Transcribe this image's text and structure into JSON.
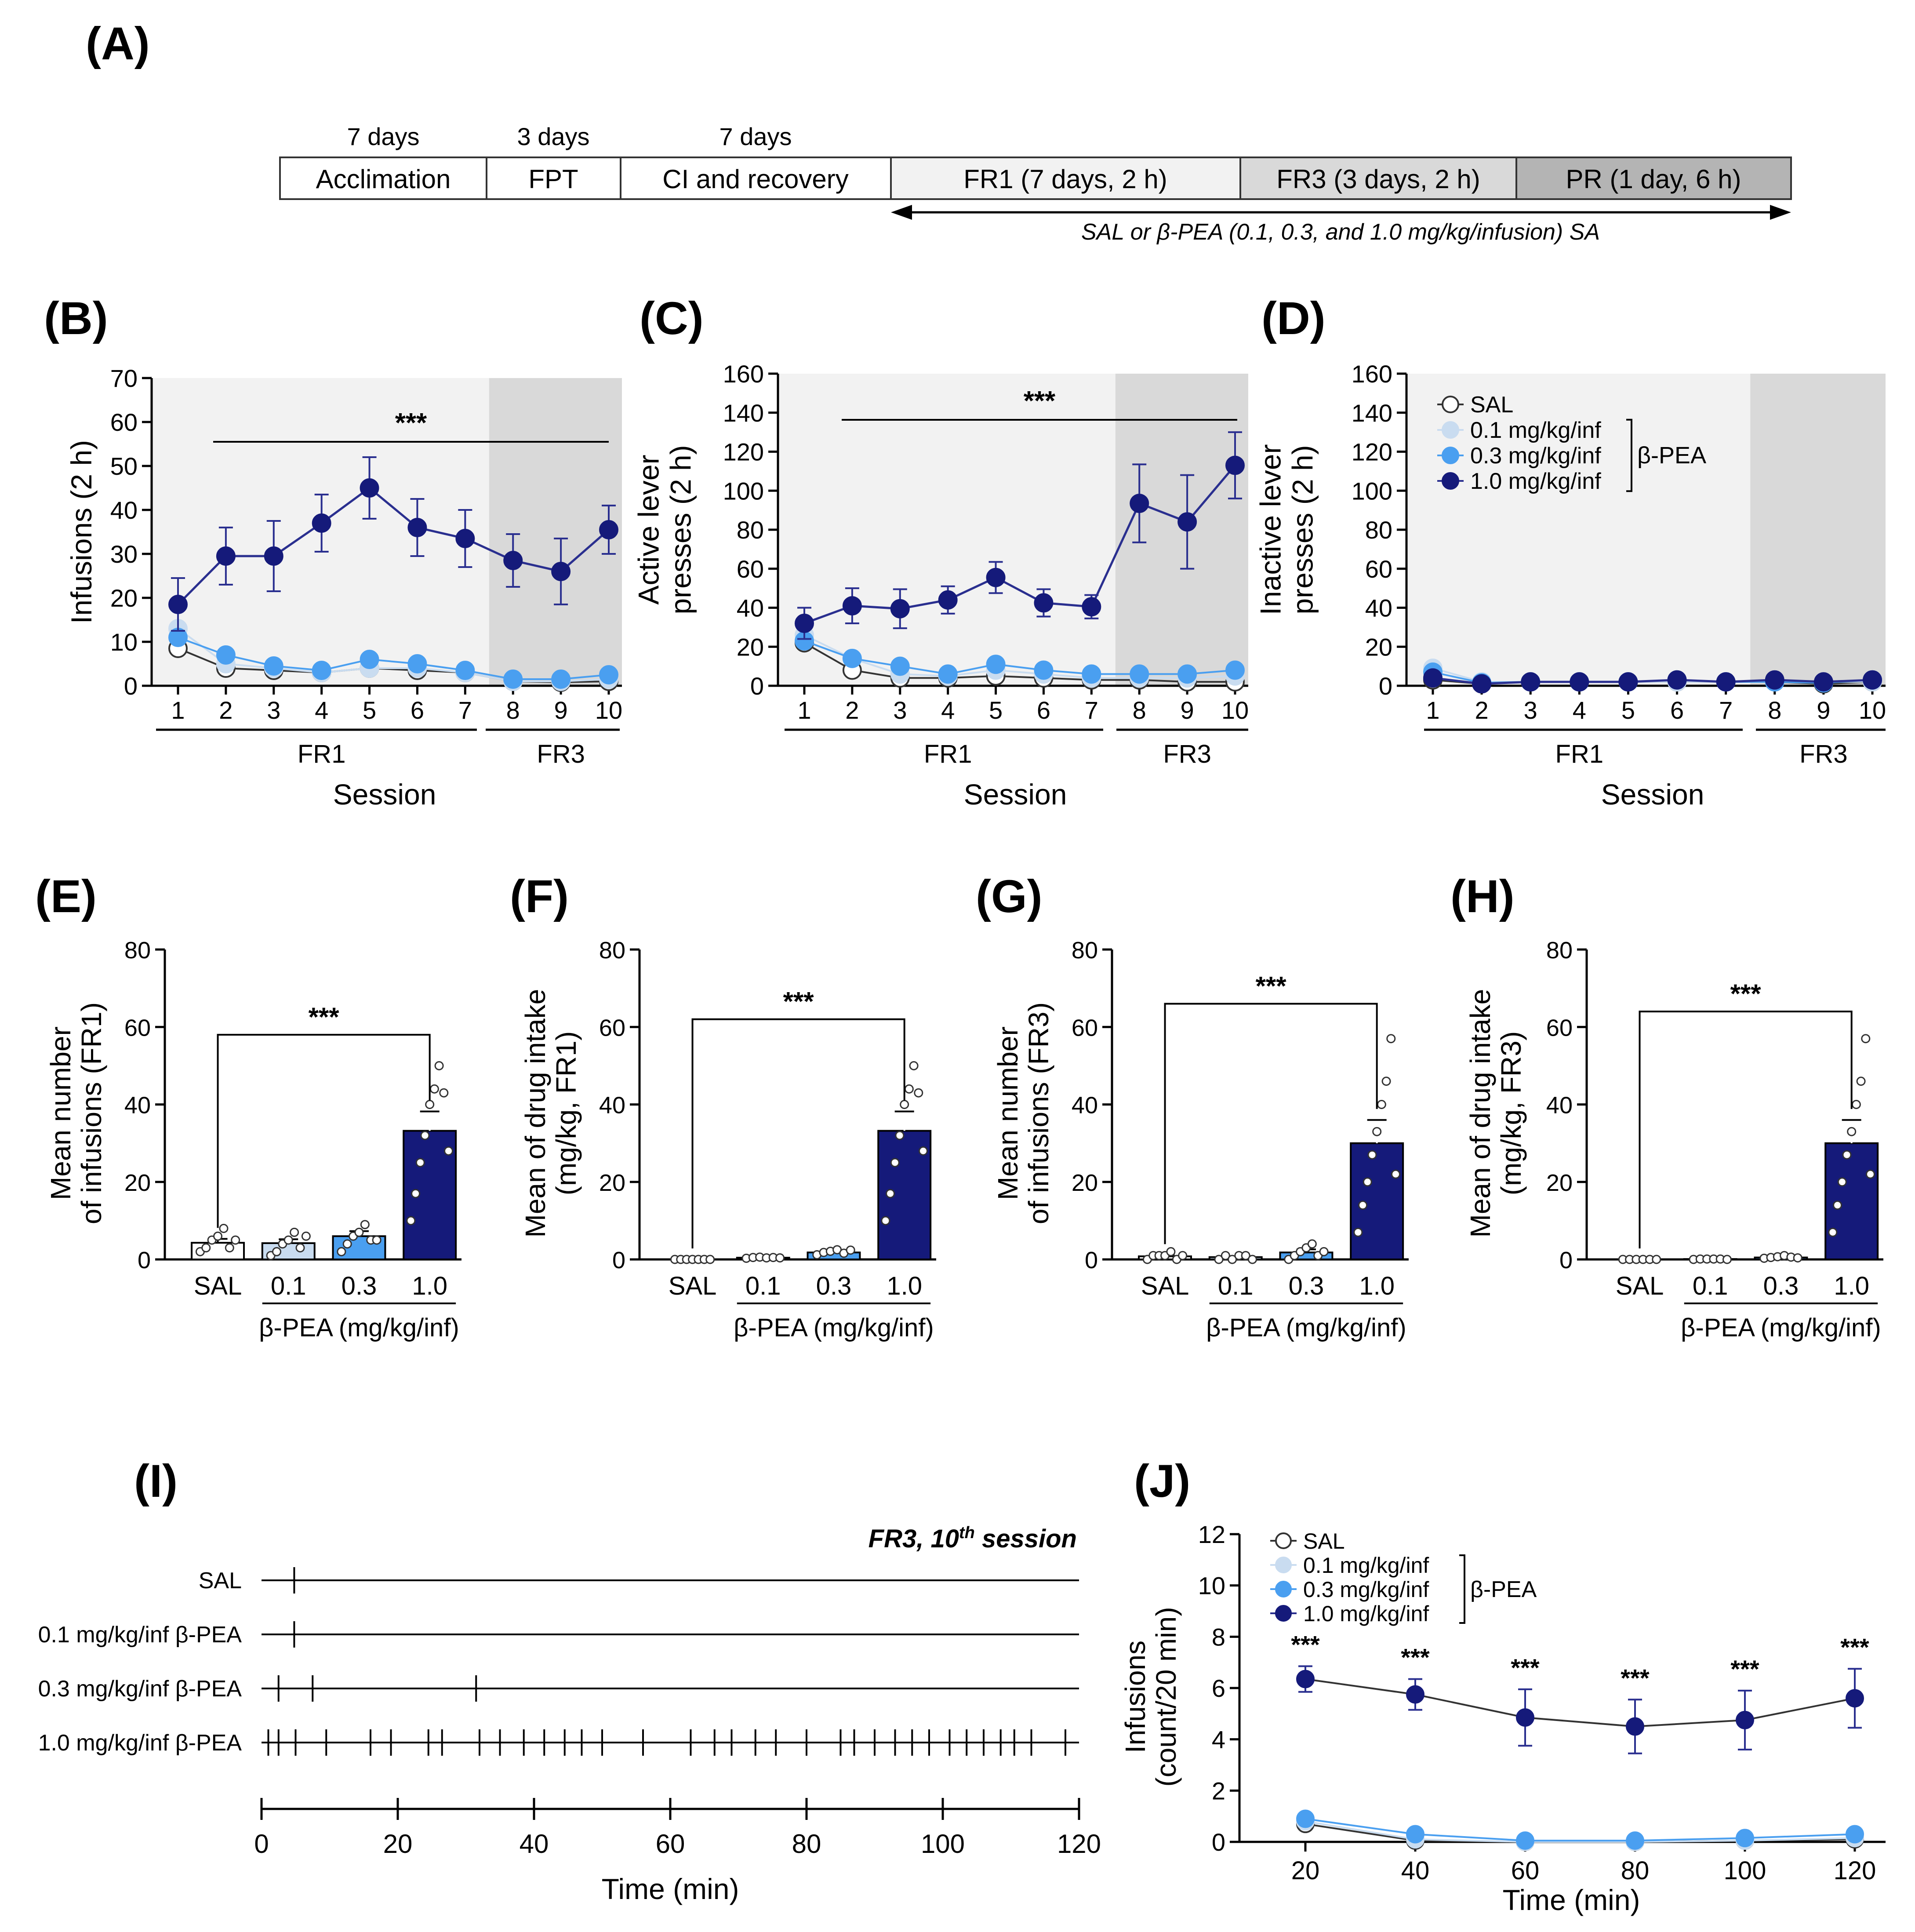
{
  "panel_labels": {
    "A": "(A)",
    "B": "(B)",
    "C": "(C)",
    "D": "(D)",
    "E": "(E)",
    "F": "(F)",
    "G": "(G)",
    "H": "(H)",
    "I": "(I)",
    "J": "(J)"
  },
  "timeline": {
    "stages": [
      {
        "label": "Acclimation",
        "duration": "7 days"
      },
      {
        "label": "FPT",
        "duration": "3 days"
      },
      {
        "label": "CI and recovery",
        "duration": "7 days"
      },
      {
        "label": "FR1 (7 days, 2 h)",
        "duration": ""
      },
      {
        "label": "FR3 (3 days, 2 h)",
        "duration": ""
      },
      {
        "label": "PR (1 day, 6 h)",
        "duration": ""
      }
    ],
    "arrow_label": "SAL or β-PEA (0.1, 0.3, and 1.0 mg/kg/infusion) SA"
  },
  "colors": {
    "sal": "#ffffff",
    "d01": "#c9dcf0",
    "d03": "#4a9ff0",
    "d10": "#151a7a",
    "bg_fr1": "#f2f2f2",
    "bg_fr3": "#d9d9d9"
  },
  "legend": {
    "sal": "SAL",
    "d01": "0.1 mg/kg/inf",
    "d03": "0.3 mg/kg/inf",
    "d10": "1.0 mg/kg/inf",
    "group": "β-PEA"
  },
  "chart_data": [
    {
      "id": "B",
      "type": "line",
      "ylabel": "Infusions (2 h)",
      "xlabel": "Session",
      "ylim": [
        0,
        70
      ],
      "yticks": [
        0,
        10,
        20,
        30,
        40,
        50,
        60,
        70
      ],
      "x": [
        1,
        2,
        3,
        4,
        5,
        6,
        7,
        8,
        9,
        10
      ],
      "phase_labels": [
        "FR1",
        "FR3"
      ],
      "significance": "***",
      "series": [
        {
          "name": "SAL",
          "values": [
            8.5,
            4.0,
            3.5,
            3.0,
            4.0,
            3.5,
            3.0,
            1.0,
            0.8,
            1.0
          ]
        },
        {
          "name": "0.1 mg/kg/inf",
          "values": [
            13,
            5,
            4,
            3,
            4,
            4,
            3,
            1,
            1,
            1.5
          ]
        },
        {
          "name": "0.3 mg/kg/inf",
          "values": [
            11,
            7,
            4.5,
            3.5,
            6,
            5,
            3.5,
            1.5,
            1.5,
            2.5
          ]
        },
        {
          "name": "1.0 mg/kg/inf",
          "values": [
            18.5,
            29.5,
            29.5,
            37,
            45,
            36,
            33.5,
            28.5,
            26,
            35.5
          ],
          "errors": [
            6,
            6.5,
            8,
            6.5,
            7,
            6.5,
            6.5,
            6,
            7.5,
            5.5
          ]
        }
      ]
    },
    {
      "id": "C",
      "type": "line",
      "ylabel": [
        "Active lever",
        "presses (2 h)"
      ],
      "xlabel": "Session",
      "ylim": [
        0,
        160
      ],
      "yticks": [
        0,
        20,
        40,
        60,
        80,
        100,
        120,
        140,
        160
      ],
      "x": [
        1,
        2,
        3,
        4,
        5,
        6,
        7,
        8,
        9,
        10
      ],
      "phase_labels": [
        "FR1",
        "FR3"
      ],
      "significance": "***",
      "series": [
        {
          "name": "SAL",
          "values": [
            22,
            8,
            4,
            4,
            5,
            4,
            3,
            3,
            2,
            2
          ]
        },
        {
          "name": "0.1 mg/kg/inf",
          "values": [
            26,
            14,
            6,
            5,
            8,
            6,
            4,
            4,
            4,
            5
          ]
        },
        {
          "name": "0.3 mg/kg/inf",
          "values": [
            23,
            14,
            10,
            6,
            11,
            8,
            6,
            6,
            6,
            8
          ]
        },
        {
          "name": "1.0 mg/kg/inf",
          "values": [
            32,
            41,
            39.5,
            44,
            55.5,
            42.5,
            40.5,
            93.5,
            84,
            113
          ],
          "errors": [
            8,
            9,
            10,
            7,
            8,
            7,
            6,
            20,
            24,
            17
          ]
        }
      ]
    },
    {
      "id": "D",
      "type": "line",
      "ylabel": [
        "Inactive lever",
        "presses (2 h)"
      ],
      "xlabel": "Session",
      "ylim": [
        0,
        160
      ],
      "yticks": [
        0,
        20,
        40,
        60,
        80,
        100,
        120,
        140,
        160
      ],
      "x": [
        1,
        2,
        3,
        4,
        5,
        6,
        7,
        8,
        9,
        10
      ],
      "phase_labels": [
        "FR1",
        "FR3"
      ],
      "series": [
        {
          "name": "SAL",
          "values": [
            3,
            1,
            2,
            2,
            2,
            2,
            2,
            2,
            1,
            2
          ]
        },
        {
          "name": "0.1 mg/kg/inf",
          "values": [
            9,
            2,
            2,
            2,
            2,
            2,
            2,
            2,
            2,
            2
          ]
        },
        {
          "name": "0.3 mg/kg/inf",
          "values": [
            7,
            1.5,
            2,
            2,
            2,
            3,
            2,
            2,
            1.5,
            3
          ]
        },
        {
          "name": "1.0 mg/kg/inf",
          "values": [
            4,
            1,
            2,
            2,
            2,
            3,
            2,
            3,
            2,
            3
          ]
        }
      ]
    },
    {
      "id": "E",
      "type": "bar",
      "ylabel": [
        "Mean number",
        "of infusions (FR1)"
      ],
      "xlabel": "β-PEA (mg/kg/inf)",
      "ylim": [
        0,
        80
      ],
      "yticks": [
        0,
        20,
        40,
        60,
        80
      ],
      "categories": [
        "SAL",
        "0.1",
        "0.3",
        "1.0"
      ],
      "values": [
        4.3,
        4.2,
        6.0,
        33.2
      ],
      "errors": [
        1.0,
        1.0,
        1.3,
        5.0
      ],
      "significance": "***",
      "points": [
        [
          2,
          3,
          5,
          6,
          8,
          3,
          5
        ],
        [
          1,
          2,
          4,
          5,
          7,
          3,
          6
        ],
        [
          2,
          4,
          6,
          7,
          9,
          5,
          5
        ],
        [
          10,
          17,
          25,
          32,
          40,
          44,
          50,
          43,
          28
        ]
      ]
    },
    {
      "id": "F",
      "type": "bar",
      "ylabel": [
        "Mean of drug intake",
        "(mg/kg, FR1)"
      ],
      "xlabel": "β-PEA (mg/kg/inf)",
      "ylim": [
        0,
        80
      ],
      "yticks": [
        0,
        20,
        40,
        60,
        80
      ],
      "categories": [
        "SAL",
        "0.1",
        "0.3",
        "1.0"
      ],
      "values": [
        0,
        0.45,
        1.8,
        33.2
      ],
      "errors": [
        0,
        0.1,
        0.4,
        5.0
      ],
      "significance": "***",
      "points": [
        [
          0,
          0,
          0,
          0,
          0,
          0,
          0
        ],
        [
          0.3,
          0.5,
          0.6,
          0.4,
          0.5,
          0.4
        ],
        [
          1.2,
          1.8,
          2.1,
          2.5,
          1.6,
          2.4
        ],
        [
          10,
          17,
          25,
          32,
          40,
          44,
          50,
          43,
          28
        ]
      ]
    },
    {
      "id": "G",
      "type": "bar",
      "ylabel": [
        "Mean number",
        "of infusions (FR3)"
      ],
      "xlabel": "β-PEA (mg/kg/inf)",
      "ylim": [
        0,
        80
      ],
      "yticks": [
        0,
        20,
        40,
        60,
        80
      ],
      "categories": [
        "SAL",
        "0.1",
        "0.3",
        "1.0"
      ],
      "values": [
        0.8,
        0.6,
        1.8,
        30
      ],
      "errors": [
        0.3,
        0.2,
        0.8,
        6.0
      ],
      "significance": "***",
      "points": [
        [
          0,
          1,
          1,
          1,
          2,
          0,
          1
        ],
        [
          0,
          1,
          0,
          1,
          1,
          0
        ],
        [
          0,
          1,
          2,
          3,
          4,
          1,
          2
        ],
        [
          7,
          14,
          20,
          27,
          33,
          40,
          46,
          57,
          22
        ]
      ]
    },
    {
      "id": "H",
      "type": "bar",
      "ylabel": [
        "Mean of drug intake",
        "(mg/kg, FR3)"
      ],
      "xlabel": "β-PEA (mg/kg/inf)",
      "ylim": [
        0,
        80
      ],
      "yticks": [
        0,
        20,
        40,
        60,
        80
      ],
      "categories": [
        "SAL",
        "0.1",
        "0.3",
        "1.0"
      ],
      "values": [
        0,
        0.1,
        0.5,
        30
      ],
      "errors": [
        0,
        0.05,
        0.2,
        6.0
      ],
      "significance": "***",
      "points": [
        [
          0,
          0,
          0,
          0,
          0,
          0
        ],
        [
          0,
          0.1,
          0.1,
          0.1,
          0.1,
          0
        ],
        [
          0.3,
          0.5,
          0.7,
          1.0,
          0.6,
          0.4
        ],
        [
          7,
          14,
          20,
          27,
          33,
          40,
          46,
          57,
          22
        ]
      ]
    },
    {
      "id": "I",
      "type": "event_raster",
      "title": "FR3, 10",
      "title_sup": "th",
      "title_suffix": " session",
      "xlabel": "Time (min)",
      "xlim": [
        0,
        120
      ],
      "xticks": [
        0,
        20,
        40,
        60,
        80,
        100,
        120
      ],
      "rows": [
        {
          "label": "SAL",
          "events": [
            4.8
          ]
        },
        {
          "label": "0.1 mg/kg/inf β-PEA",
          "events": [
            4.8
          ]
        },
        {
          "label": "0.3 mg/kg/inf β-PEA",
          "events": [
            2.5,
            7.5,
            31.5
          ]
        },
        {
          "label": "1.0 mg/kg/inf β-PEA",
          "events": [
            1,
            2.5,
            5,
            9.5,
            16,
            19,
            24.5,
            26.5,
            32,
            35,
            38.5,
            41.5,
            44.5,
            47,
            50,
            56,
            63,
            66.5,
            69,
            72.5,
            75.5,
            80,
            85,
            87,
            90,
            93,
            95.5,
            98,
            101,
            103.5,
            106,
            108.5,
            110.5,
            113,
            118
          ]
        }
      ]
    },
    {
      "id": "J",
      "type": "line",
      "ylabel": [
        "Infusions",
        "(count/20 min)"
      ],
      "xlabel": "Time (min)",
      "ylim": [
        0,
        12
      ],
      "yticks": [
        0,
        2,
        4,
        6,
        8,
        10,
        12
      ],
      "x": [
        20,
        40,
        60,
        80,
        100,
        120
      ],
      "significance": [
        "***",
        "***",
        "***",
        "***",
        "***",
        "***"
      ],
      "series": [
        {
          "name": "SAL",
          "values": [
            0.7,
            0.05,
            0,
            0,
            0.05,
            0.1
          ]
        },
        {
          "name": "0.1 mg/kg/inf",
          "values": [
            0.8,
            0.1,
            0,
            0,
            0.05,
            0.15
          ]
        },
        {
          "name": "0.3 mg/kg/inf",
          "values": [
            0.9,
            0.3,
            0.05,
            0.05,
            0.15,
            0.3
          ]
        },
        {
          "name": "1.0 mg/kg/inf",
          "values": [
            6.35,
            5.75,
            4.85,
            4.5,
            4.75,
            5.6
          ],
          "errors": [
            0.5,
            0.6,
            1.1,
            1.05,
            1.15,
            1.15
          ]
        }
      ]
    }
  ]
}
